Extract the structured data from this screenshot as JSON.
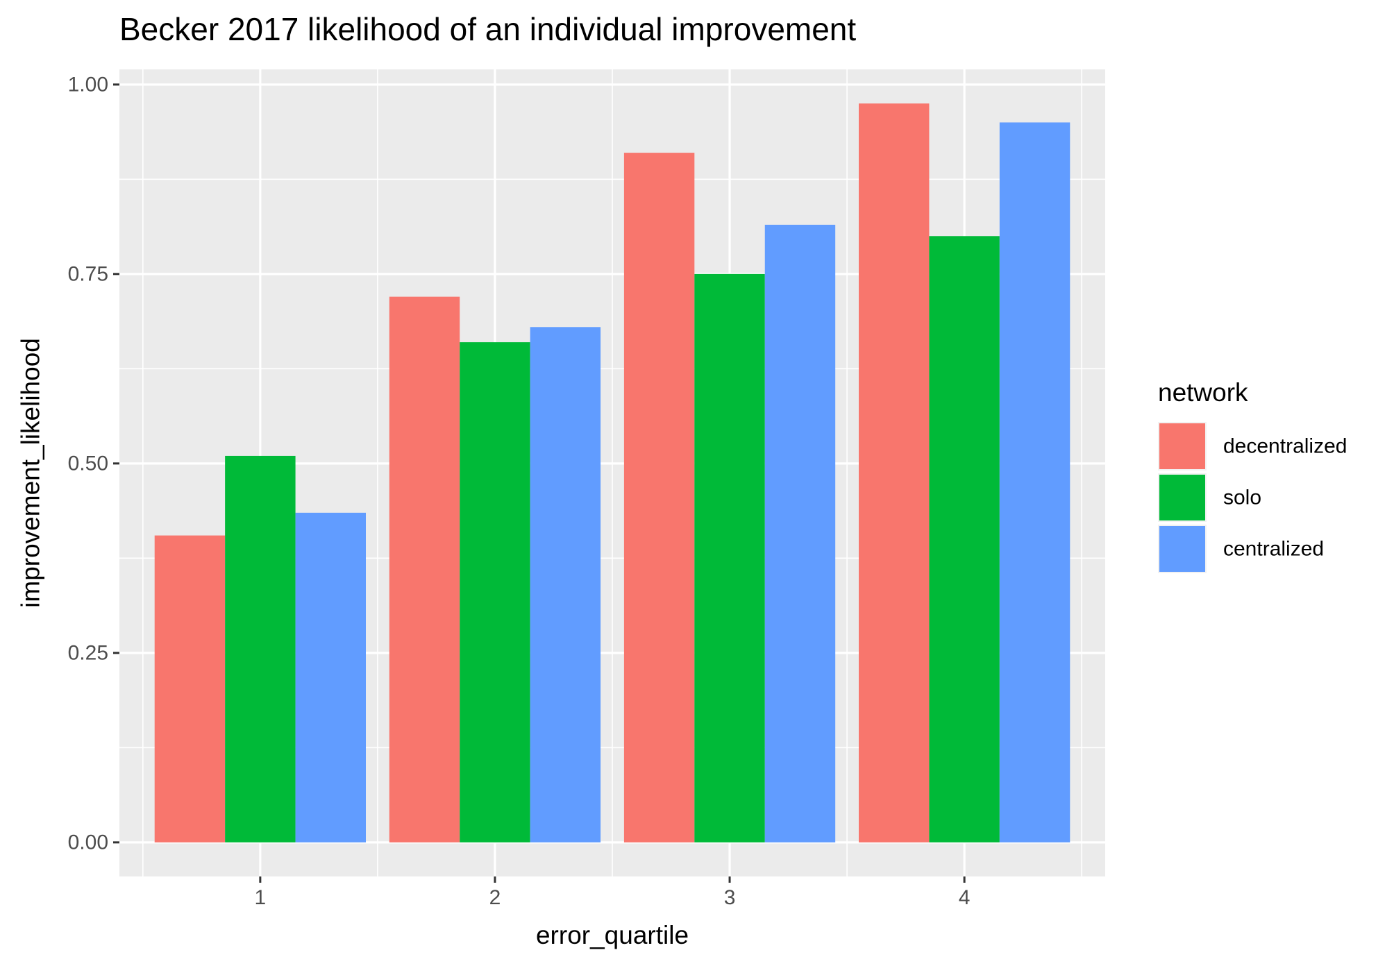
{
  "chart_data": {
    "type": "bar",
    "title": "Becker 2017 likelihood of an individual improvement",
    "xlabel": "error_quartile",
    "ylabel": "improvement_likelihood",
    "categories": [
      "1",
      "2",
      "3",
      "4"
    ],
    "ylim": [
      -0.045,
      1.02
    ],
    "yticks": [
      0.0,
      0.25,
      0.5,
      0.75,
      1.0
    ],
    "ytick_labels": [
      "0.00",
      "0.25",
      "0.50",
      "0.75",
      "1.00"
    ],
    "grid": true,
    "legend": {
      "title": "network",
      "position": "right"
    },
    "series": [
      {
        "name": "decentralized",
        "color": "#F8766D",
        "values": [
          0.405,
          0.72,
          0.91,
          0.975
        ]
      },
      {
        "name": "solo",
        "color": "#00BA38",
        "values": [
          0.51,
          0.66,
          0.75,
          0.8
        ]
      },
      {
        "name": "centralized",
        "color": "#619CFF",
        "values": [
          0.435,
          0.68,
          0.815,
          0.95
        ]
      }
    ],
    "panel_background": "#EBEBEB",
    "grid_color": "#FFFFFF"
  }
}
